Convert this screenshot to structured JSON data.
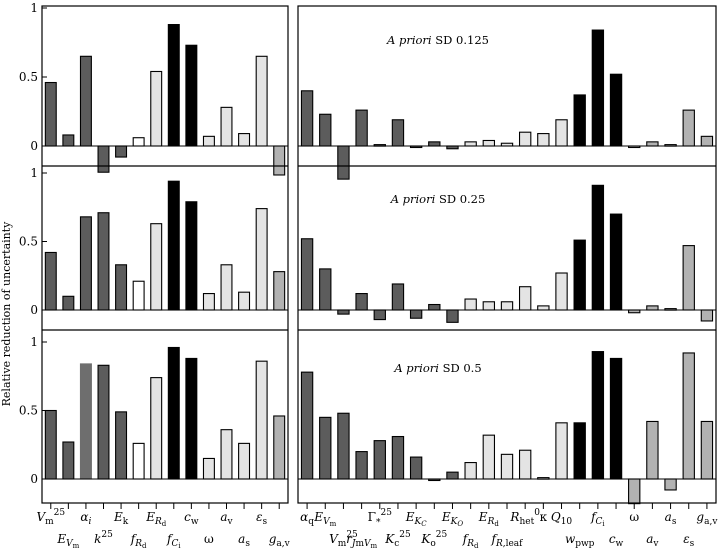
{
  "chart_data": {
    "type": "bar",
    "title": "",
    "ylabel": "Relative reduction of uncertainty",
    "ylim": [
      -0.25,
      1.0
    ],
    "colors": {
      "dark": "#5c5c5c",
      "white": "#ffffff",
      "light": "#e4e4e4",
      "black": "#000000",
      "mid": "#b2b2b2",
      "accent": "#6e6e6e"
    },
    "panels": [
      {
        "name": "left",
        "categories": [
          "Vm25",
          "EVm",
          "αi",
          "k25",
          "Ek",
          "fRd",
          "ERd",
          "fCi",
          "cw",
          "ω",
          "av",
          "as",
          "εs",
          "ga,v"
        ],
        "category_colors": [
          "dark",
          "dark",
          "dark",
          "dark",
          "dark",
          "white",
          "light",
          "black",
          "black",
          "light",
          "light",
          "light",
          "light",
          "mid"
        ],
        "label_rows": [
          0,
          1,
          0,
          1,
          0,
          1,
          0,
          1,
          0,
          1,
          0,
          1,
          0,
          1
        ],
        "tick_labels_html": [
          "<tspan font-style=\"italic\">V</tspan><tspan font-size=\"9\" dy=\"3\">m</tspan><tspan font-size=\"9\" dy=\"-9\">25</tspan>",
          "<tspan font-style=\"italic\">E</tspan><tspan font-style=\"italic\" font-size=\"9\" dy=\"3\">V</tspan><tspan font-size=\"7\" dy=\"2\">m</tspan>",
          "<tspan font-style=\"italic\">α</tspan><tspan font-style=\"italic\" font-size=\"9\" dy=\"3\">i</tspan>",
          "<tspan font-style=\"italic\">k</tspan><tspan font-size=\"9\" dy=\"-6\">25</tspan>",
          "<tspan font-style=\"italic\">E</tspan><tspan font-size=\"9\" dy=\"3\">k</tspan>",
          "<tspan font-style=\"italic\">f</tspan><tspan font-style=\"italic\" font-size=\"9\" dy=\"3\">R</tspan><tspan font-size=\"7\" dy=\"2\">d</tspan>",
          "<tspan font-style=\"italic\">E</tspan><tspan font-style=\"italic\" font-size=\"9\" dy=\"3\">R</tspan><tspan font-size=\"7\" dy=\"2\">d</tspan>",
          "<tspan font-style=\"italic\">f</tspan><tspan font-style=\"italic\" font-size=\"9\" dy=\"3\">C</tspan><tspan font-size=\"7\" dy=\"2\">i</tspan>",
          "<tspan font-style=\"italic\">c</tspan><tspan font-size=\"9\" dy=\"3\">w</tspan>",
          "ω",
          "<tspan font-style=\"italic\">a</tspan><tspan font-size=\"9\" dy=\"3\">v</tspan>",
          "<tspan font-style=\"italic\">a</tspan><tspan font-size=\"9\" dy=\"3\">s</tspan>",
          "<tspan font-style=\"italic\">ε</tspan><tspan font-size=\"9\" dy=\"3\">s</tspan>",
          "<tspan font-style=\"italic\">g</tspan><tspan font-size=\"9\" dy=\"3\">a,v</tspan>"
        ],
        "series": [
          {
            "name": "A priori SD 0.125",
            "values": [
              0.46,
              0.08,
              0.65,
              -0.19,
              -0.08,
              0.06,
              0.54,
              0.88,
              0.73,
              0.07,
              0.28,
              0.09,
              0.65,
              -0.21
            ]
          },
          {
            "name": "A priori SD 0.25",
            "values": [
              0.42,
              0.1,
              0.68,
              0.71,
              0.33,
              0.21,
              0.63,
              0.94,
              0.79,
              0.12,
              0.33,
              0.13,
              0.74,
              0.28
            ]
          },
          {
            "name": "A priori SD 0.5",
            "values": [
              0.5,
              0.27,
              0.84,
              0.83,
              0.49,
              0.26,
              0.74,
              0.96,
              0.88,
              0.15,
              0.36,
              0.26,
              0.86,
              0.46
            ]
          }
        ]
      },
      {
        "name": "right",
        "categories": [
          "αq",
          "EVm",
          "Vm25",
          "rJmVm",
          "Γs*25",
          "Kc25",
          "EKC",
          "Ko25",
          "EKO",
          "fRd",
          "ERd",
          "fR,leaf",
          "Rhet0",
          "κ",
          "Q10",
          "wpwp",
          "fCi",
          "cw",
          "ω",
          "av",
          "as",
          "εs",
          "ga,v"
        ],
        "category_colors": [
          "dark",
          "dark",
          "dark",
          "dark",
          "dark",
          "dark",
          "dark",
          "dark",
          "dark",
          "light",
          "light",
          "light",
          "light",
          "light",
          "light",
          "black",
          "black",
          "black",
          "mid",
          "mid",
          "mid",
          "mid",
          "mid"
        ],
        "label_rows": [
          0,
          0,
          1,
          1,
          0,
          1,
          0,
          1,
          0,
          1,
          0,
          1,
          0,
          0,
          0,
          1,
          0,
          1,
          0,
          1,
          0,
          1,
          0
        ],
        "tick_labels_html": [
          "<tspan font-style=\"italic\">α</tspan><tspan font-size=\"9\" dy=\"3\">q</tspan>",
          "<tspan font-style=\"italic\">E</tspan><tspan font-style=\"italic\" font-size=\"9\" dy=\"3\">V</tspan><tspan font-size=\"7\" dy=\"2\">m</tspan>",
          "<tspan font-style=\"italic\">V</tspan><tspan font-size=\"9\" dy=\"3\">m</tspan><tspan font-size=\"9\" dy=\"-9\">25</tspan>",
          "<tspan font-style=\"italic\">r</tspan><tspan font-style=\"italic\" font-size=\"9\" dy=\"3\">J</tspan><tspan font-size=\"9\">m</tspan><tspan font-style=\"italic\" font-size=\"9\">V</tspan><tspan font-size=\"7\" dy=\"2\">m</tspan>",
          "<tspan>Γ</tspan><tspan font-size=\"9\" dy=\"4\">*</tspan><tspan font-size=\"9\" dy=\"-10\">25</tspan>",
          "<tspan font-style=\"italic\">K</tspan><tspan font-size=\"9\" dy=\"3\">c</tspan><tspan font-size=\"9\" dy=\"-9\">25</tspan>",
          "<tspan font-style=\"italic\">E</tspan><tspan font-style=\"italic\" font-size=\"9\" dy=\"3\">K</tspan><tspan font-style=\"italic\" font-size=\"7\" dy=\"2\">C</tspan>",
          "<tspan font-style=\"italic\">K</tspan><tspan font-size=\"9\" dy=\"3\">o</tspan><tspan font-size=\"9\" dy=\"-9\">25</tspan>",
          "<tspan font-style=\"italic\">E</tspan><tspan font-style=\"italic\" font-size=\"9\" dy=\"3\">K</tspan><tspan font-style=\"italic\" font-size=\"7\" dy=\"2\">O</tspan>",
          "<tspan font-style=\"italic\">f</tspan><tspan font-style=\"italic\" font-size=\"9\" dy=\"3\">R</tspan><tspan font-size=\"7\" dy=\"2\">d</tspan>",
          "<tspan font-style=\"italic\">E</tspan><tspan font-style=\"italic\" font-size=\"9\" dy=\"3\">R</tspan><tspan font-size=\"7\" dy=\"2\">d</tspan>",
          "<tspan font-style=\"italic\">f</tspan><tspan font-style=\"italic\" font-size=\"9\" dy=\"3\">R</tspan><tspan font-size=\"9\">,leaf</tspan>",
          "<tspan font-style=\"italic\">R</tspan><tspan font-size=\"9\" dy=\"3\">het</tspan><tspan font-size=\"9\" dy=\"-9\">0</tspan>",
          "κ",
          "<tspan font-style=\"italic\">Q</tspan><tspan font-size=\"9\" dy=\"3\">10</tspan>",
          "<tspan font-style=\"italic\">w</tspan><tspan font-size=\"9\" dy=\"3\">pwp</tspan>",
          "<tspan font-style=\"italic\">f</tspan><tspan font-style=\"italic\" font-size=\"9\" dy=\"3\">C</tspan><tspan font-size=\"7\" dy=\"2\">i</tspan>",
          "<tspan font-style=\"italic\">c</tspan><tspan font-size=\"9\" dy=\"3\">w</tspan>",
          "ω",
          "<tspan font-style=\"italic\">a</tspan><tspan font-size=\"9\" dy=\"3\">v</tspan>",
          "<tspan font-style=\"italic\">a</tspan><tspan font-size=\"9\" dy=\"3\">s</tspan>",
          "<tspan font-style=\"italic\">ε</tspan><tspan font-size=\"9\" dy=\"3\">s</tspan>",
          "<tspan font-style=\"italic\">g</tspan><tspan font-size=\"9\" dy=\"3\">a,v</tspan>"
        ],
        "series": [
          {
            "name": "A priori SD 0.125",
            "values": [
              0.4,
              0.23,
              -0.24,
              0.26,
              0.01,
              0.19,
              0.0,
              0.03,
              -0.02,
              0.03,
              0.04,
              0.02,
              0.1,
              0.09,
              0.19,
              0.37,
              0.84,
              0.52,
              -0.01,
              0.03,
              0.01,
              0.26,
              0.07
            ]
          },
          {
            "name": "A priori SD 0.25",
            "values": [
              0.52,
              0.3,
              -0.03,
              0.12,
              -0.07,
              0.19,
              -0.06,
              0.04,
              -0.09,
              0.08,
              0.06,
              0.06,
              0.17,
              0.03,
              0.27,
              0.51,
              0.91,
              0.7,
              -0.02,
              0.03,
              0.01,
              0.47,
              -0.08
            ]
          },
          {
            "name": "A priori SD 0.5",
            "values": [
              0.78,
              0.45,
              0.48,
              0.2,
              0.28,
              0.31,
              0.16,
              -0.01,
              0.05,
              0.12,
              0.32,
              0.18,
              0.21,
              0.01,
              0.41,
              0.41,
              0.93,
              0.88,
              -0.18,
              0.42,
              -0.08,
              0.92,
              0.42
            ]
          }
        ]
      }
    ],
    "yticks": [
      0,
      0.5,
      1
    ],
    "ytick_labels": [
      "0",
      "0.5",
      "1"
    ],
    "row_annotations": [
      {
        "prefix": "A priori",
        "rest": " SD 0.125"
      },
      {
        "prefix": "A priori",
        "rest": " SD 0.25"
      },
      {
        "prefix": "A priori",
        "rest": " SD 0.5"
      }
    ]
  }
}
